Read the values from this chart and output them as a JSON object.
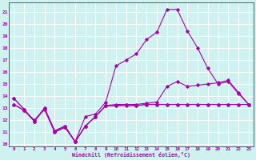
{
  "xlabel": "Windchill (Refroidissement éolien,°C)",
  "xlim": [
    -0.5,
    23.5
  ],
  "ylim": [
    9.8,
    21.8
  ],
  "yticks": [
    10,
    11,
    12,
    13,
    14,
    15,
    16,
    17,
    18,
    19,
    20,
    21
  ],
  "xticks": [
    0,
    1,
    2,
    3,
    4,
    5,
    6,
    7,
    8,
    9,
    10,
    11,
    12,
    13,
    14,
    15,
    16,
    17,
    18,
    19,
    20,
    21,
    22,
    23
  ],
  "bg_color": "#cff1ef",
  "grid_color": "#ffffff",
  "line_color": "#aa00aa",
  "line1": [
    13.8,
    12.9,
    11.9,
    13.0,
    11.1,
    11.5,
    10.2,
    11.5,
    12.3,
    13.2,
    13.2,
    13.3,
    13.2,
    13.3,
    13.3,
    13.3,
    13.3,
    13.3,
    13.3,
    13.3,
    13.3,
    13.3,
    13.3,
    13.3
  ],
  "line2": [
    13.8,
    12.9,
    11.9,
    13.0,
    11.1,
    11.5,
    10.2,
    12.3,
    12.5,
    13.5,
    16.5,
    17.0,
    17.5,
    18.7,
    19.3,
    21.2,
    21.2,
    19.4,
    18.0,
    16.3,
    15.0,
    15.2,
    14.2,
    13.3
  ],
  "line3": [
    13.3,
    12.8,
    11.9,
    12.9,
    11.0,
    11.4,
    10.2,
    11.5,
    12.3,
    13.2,
    13.2,
    13.2,
    13.2,
    13.3,
    13.3,
    13.3,
    13.3,
    13.3,
    13.3,
    13.3,
    13.3,
    13.3,
    13.3,
    13.3
  ],
  "line4": [
    13.3,
    12.8,
    12.0,
    12.9,
    11.0,
    11.4,
    10.2,
    11.5,
    12.3,
    13.2,
    13.3,
    13.3,
    13.3,
    13.4,
    13.5,
    14.8,
    15.2,
    14.8,
    14.9,
    15.0,
    15.1,
    15.3,
    14.3,
    13.3
  ]
}
